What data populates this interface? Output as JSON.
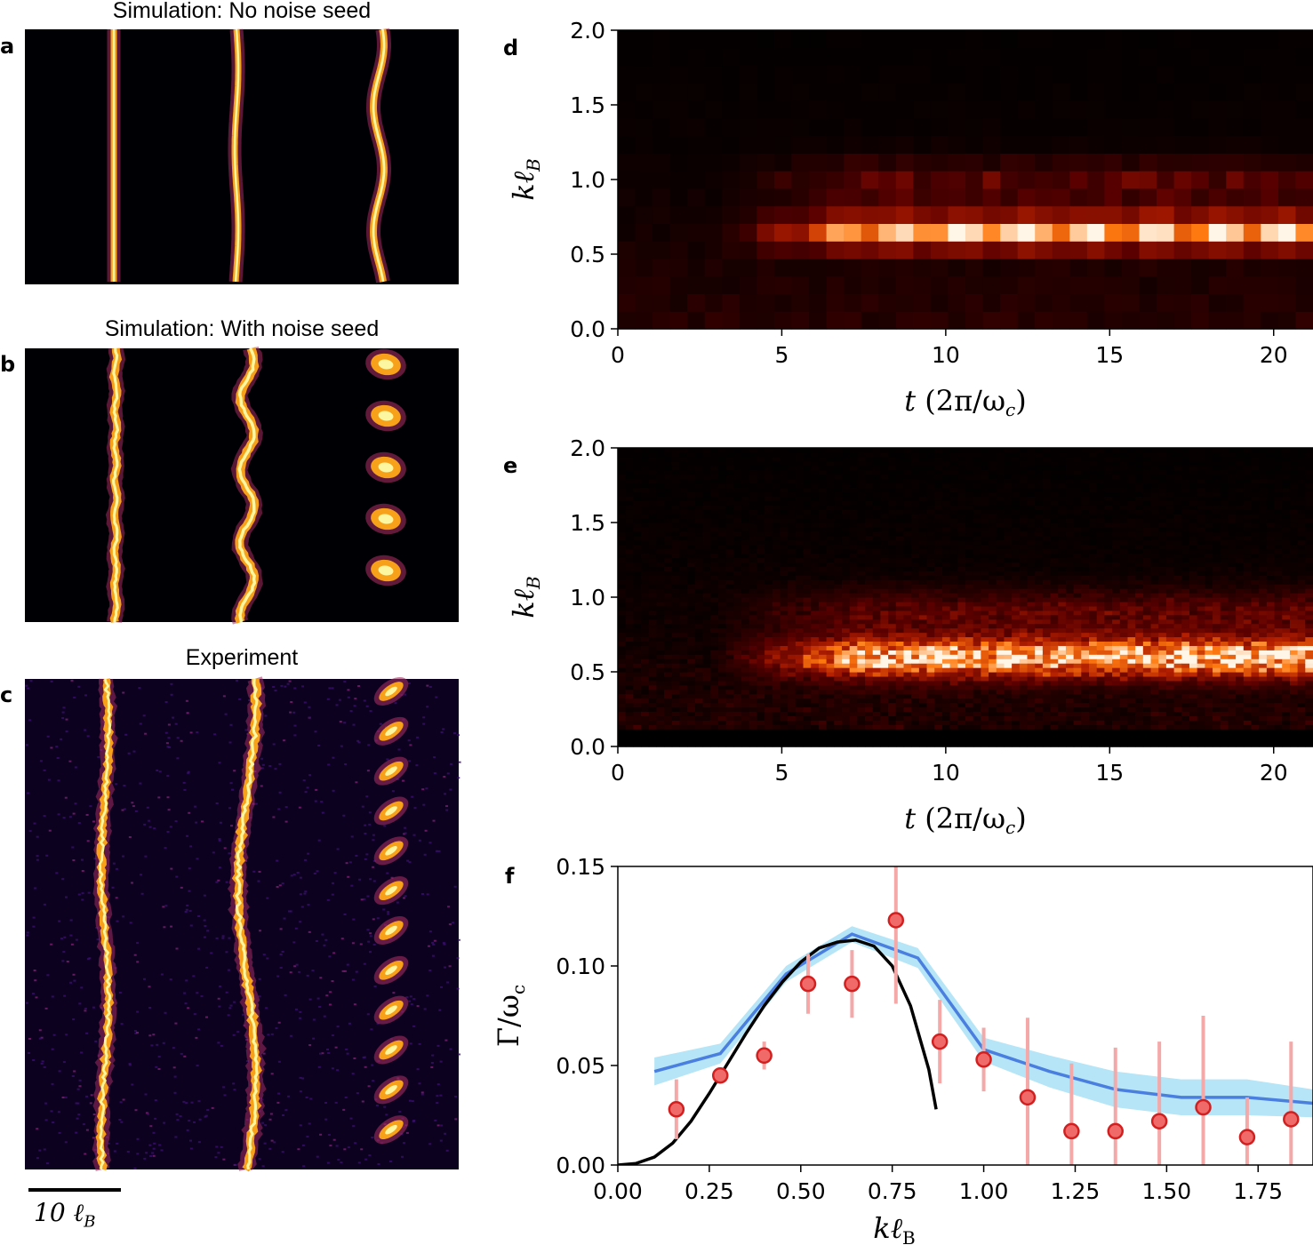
{
  "panels": {
    "a": {
      "letter": "a",
      "title": "Simulation: No noise seed"
    },
    "b": {
      "letter": "b",
      "title": "Simulation: With noise seed"
    },
    "c": {
      "letter": "c",
      "title": "Experiment"
    },
    "d": {
      "letter": "d"
    },
    "e": {
      "letter": "e"
    },
    "f": {
      "letter": "f"
    }
  },
  "scale_bar": {
    "label": "10 ℓ_B",
    "label_main": "10 ℓ",
    "label_sub": "B"
  },
  "colors": {
    "image_bg": "#000004",
    "inferno_core": "#fcf6a0",
    "inferno_mid": "#f7a11b",
    "inferno_edge": "#a42c60",
    "inferno_dark": "#2a0b4e",
    "heat_black": "#000000",
    "heat_dark": "#5a0000",
    "heat_red": "#b21e00",
    "heat_orange": "#ff7a10",
    "heat_white": "#fff6e8",
    "sim_line": "#4a7fe0",
    "sim_band": "#a8e0f5",
    "theory_line": "#000000",
    "data_fill": "#f06a6a",
    "data_edge": "#d22020",
    "errorbar": "#f4a8a8"
  },
  "chart_data": [
    {
      "id": "d",
      "type": "heatmap",
      "xlabel_main": "t",
      "xlabel_unit": "(2π/ω",
      "xlabel_unit_sub": "c",
      "xlabel_close": ")",
      "ylabel_main": "kℓ",
      "ylabel_sub": "B",
      "xlim": [
        0,
        21.2
      ],
      "ylim": [
        0,
        2.0
      ],
      "xticks": [
        "0",
        "5",
        "10",
        "15",
        "20"
      ],
      "yticks": [
        "0.0",
        "0.5",
        "1.0",
        "1.5",
        "2.0"
      ],
      "dominant_k": 0.65,
      "onset_t": 5.5
    },
    {
      "id": "e",
      "type": "heatmap",
      "xlabel_main": "t",
      "xlabel_unit": "(2π/ω",
      "xlabel_unit_sub": "c",
      "xlabel_close": ")",
      "ylabel_main": "kℓ",
      "ylabel_sub": "B",
      "xlim": [
        0,
        21.2
      ],
      "ylim": [
        0,
        2.0
      ],
      "xticks": [
        "0",
        "5",
        "10",
        "15",
        "20"
      ],
      "yticks": [
        "0.0",
        "0.5",
        "1.0",
        "1.5",
        "2.0"
      ],
      "dominant_k": 0.6,
      "onset_t": 5.5
    },
    {
      "id": "f",
      "type": "line",
      "xlabel_main": "kℓ",
      "xlabel_sub": "B",
      "ylabel_main": "Γ/ω",
      "ylabel_sub": "c",
      "xlim": [
        0,
        1.9
      ],
      "ylim": [
        0,
        0.15
      ],
      "xticks": [
        "0.00",
        "0.25",
        "0.50",
        "0.75",
        "1.00",
        "1.25",
        "1.50",
        "1.75"
      ],
      "yticks": [
        "0.00",
        "0.05",
        "0.10",
        "0.15"
      ],
      "series": [
        {
          "kind": "simulation_mean_with_band",
          "x": [
            0.1,
            0.28,
            0.46,
            0.64,
            0.82,
            1.0,
            1.18,
            1.36,
            1.54,
            1.72,
            1.9
          ],
          "y": [
            0.047,
            0.056,
            0.096,
            0.116,
            0.104,
            0.058,
            0.047,
            0.038,
            0.034,
            0.034,
            0.031
          ],
          "band_half_width": [
            0.007,
            0.005,
            0.004,
            0.004,
            0.005,
            0.006,
            0.008,
            0.009,
            0.009,
            0.009,
            0.007
          ]
        },
        {
          "kind": "theory",
          "x": [
            0.0,
            0.05,
            0.1,
            0.15,
            0.2,
            0.25,
            0.3,
            0.35,
            0.4,
            0.45,
            0.5,
            0.55,
            0.6,
            0.65,
            0.7,
            0.75,
            0.8,
            0.85,
            0.87
          ],
          "y": [
            0.0,
            0.0008,
            0.004,
            0.011,
            0.022,
            0.036,
            0.051,
            0.066,
            0.08,
            0.092,
            0.102,
            0.109,
            0.112,
            0.113,
            0.11,
            0.1,
            0.08,
            0.048,
            0.028
          ]
        },
        {
          "kind": "experiment",
          "x": [
            0.16,
            0.28,
            0.4,
            0.52,
            0.64,
            0.76,
            0.88,
            1.0,
            1.12,
            1.24,
            1.36,
            1.48,
            1.6,
            1.72,
            1.84
          ],
          "y": [
            0.028,
            0.045,
            0.055,
            0.091,
            0.091,
            0.123,
            0.062,
            0.053,
            0.034,
            0.017,
            0.017,
            0.022,
            0.029,
            0.014,
            0.023
          ],
          "err": [
            0.015,
            0.004,
            0.007,
            0.015,
            0.017,
            0.042,
            0.021,
            0.016,
            0.04,
            0.034,
            0.042,
            0.04,
            0.046,
            0.02,
            0.039
          ]
        }
      ]
    }
  ]
}
